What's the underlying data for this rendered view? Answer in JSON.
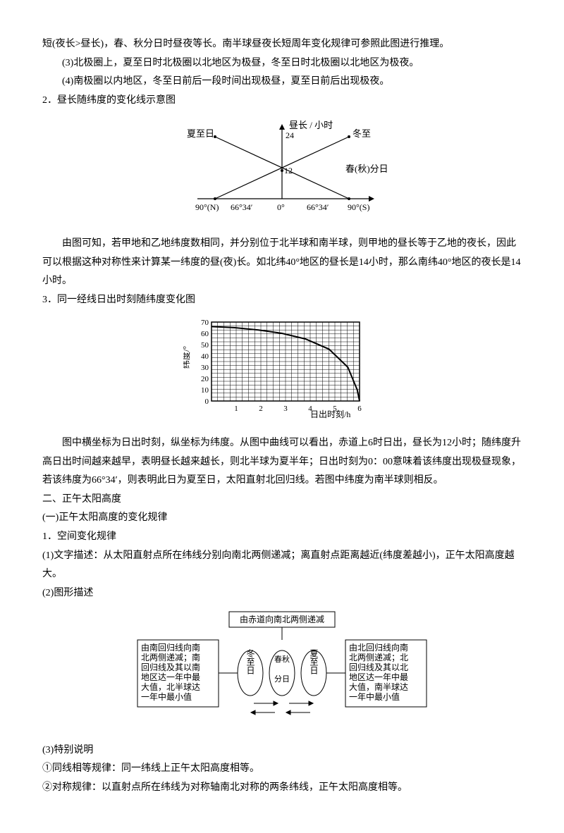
{
  "p1": "短(夜长>昼长)，春、秋分日时昼夜等长。南半球昼夜长短周年变化规律可参照此图进行推理。",
  "p2": "(3)北极圈上，夏至日时北极圈以北地区为极昼，冬至日时北极圈以北地区为极夜。",
  "p3": "(4)南极圈以内地区，冬至日前后一段时间出现极昼，夏至日前后出现极夜。",
  "h2": "2．昼长随纬度的变化线示意图",
  "chart1": {
    "ylabel": "昼长 / 小时",
    "ymax": "24",
    "ymid": "12",
    "top_left": "夏至日",
    "top_right": "冬至",
    "right_mid": "春(秋)分日",
    "xticks": [
      "90°(N)",
      "66°34′",
      "0°",
      "66°34′",
      "90°(S)"
    ]
  },
  "p4": "由图可知，若甲地和乙地纬度数相同，并分别位于北半球和南半球，则甲地的昼长等于乙地的夜长，因此可以根据这种对称性来计算某一纬度的昼(夜)长。如北纬40°地区的昼长是14小时，那么南纬40°地区的夜长是14小时。",
  "h3": "3．同一经线日出时刻随纬度变化图",
  "chart2": {
    "ylabel": "纬度/°",
    "xlabel": "日出时刻/h",
    "yticks": [
      "70",
      "60",
      "50",
      "40",
      "30",
      "20",
      "10",
      "0"
    ],
    "xticks": [
      "1",
      "2",
      "3",
      "4",
      "5",
      "6"
    ],
    "curve": [
      [
        0,
        66
      ],
      [
        50,
        65
      ],
      [
        100,
        63
      ],
      [
        150,
        60
      ],
      [
        200,
        55
      ],
      [
        250,
        46
      ],
      [
        290,
        30
      ],
      [
        310,
        10
      ],
      [
        315,
        0
      ]
    ],
    "ylim": [
      0,
      70
    ],
    "xlim": [
      0,
      6
    ],
    "grid_color": "#000000",
    "line_color": "#000000",
    "bg": "#ffffff"
  },
  "p5": "图中横坐标为日出时刻，纵坐标为纬度。从图中曲线可以看出，赤道上6时日出，昼长为12小时；随纬度升高日出时间越来越早，表明昼长越来越长，则北半球为夏半年；日出时刻为0：00意味着该纬度出现极昼现象，若该纬度为66°34′，则表明此日为夏至日，太阳直射北回归线。若图中纬度为南半球则相反。",
  "s2_title": "二、正午太阳高度",
  "s2_sub": "(一)正午太阳高度的变化规律",
  "s2_1": "1．空间变化规律",
  "s2_1a": "(1)文字描述：从太阳直射点所在纬线分别向南北两侧递减；离直射点距离越近(纬度差越小)，正午太阳高度越大。",
  "s2_1b": "(2)图形描述",
  "chart3": {
    "box_top": "由赤道向南北两侧递减",
    "box_left_lines": [
      "由南回归线向南",
      "北两侧递减；南",
      "回归线及其以南",
      "地区达一年中最",
      "大值，北半球达",
      "一年中最小值"
    ],
    "box_right_lines": [
      "由北回归线向南",
      "北两侧递减；北",
      "回归线及其以北",
      "地区达一年中最",
      "大值，南半球达",
      "一年中最小值"
    ],
    "oval_left": "冬至日",
    "oval_mid_l1": "春秋",
    "oval_mid_l2": "分日",
    "oval_right": "夏至日"
  },
  "s2_1c": "(3)特别说明",
  "s2_1c1": "①同线相等规律：同一纬线上正午太阳高度相等。",
  "s2_1c2": "②对称规律：以直射点所在纬线为对称轴南北对称的两条纬线，正午太阳高度相等。"
}
